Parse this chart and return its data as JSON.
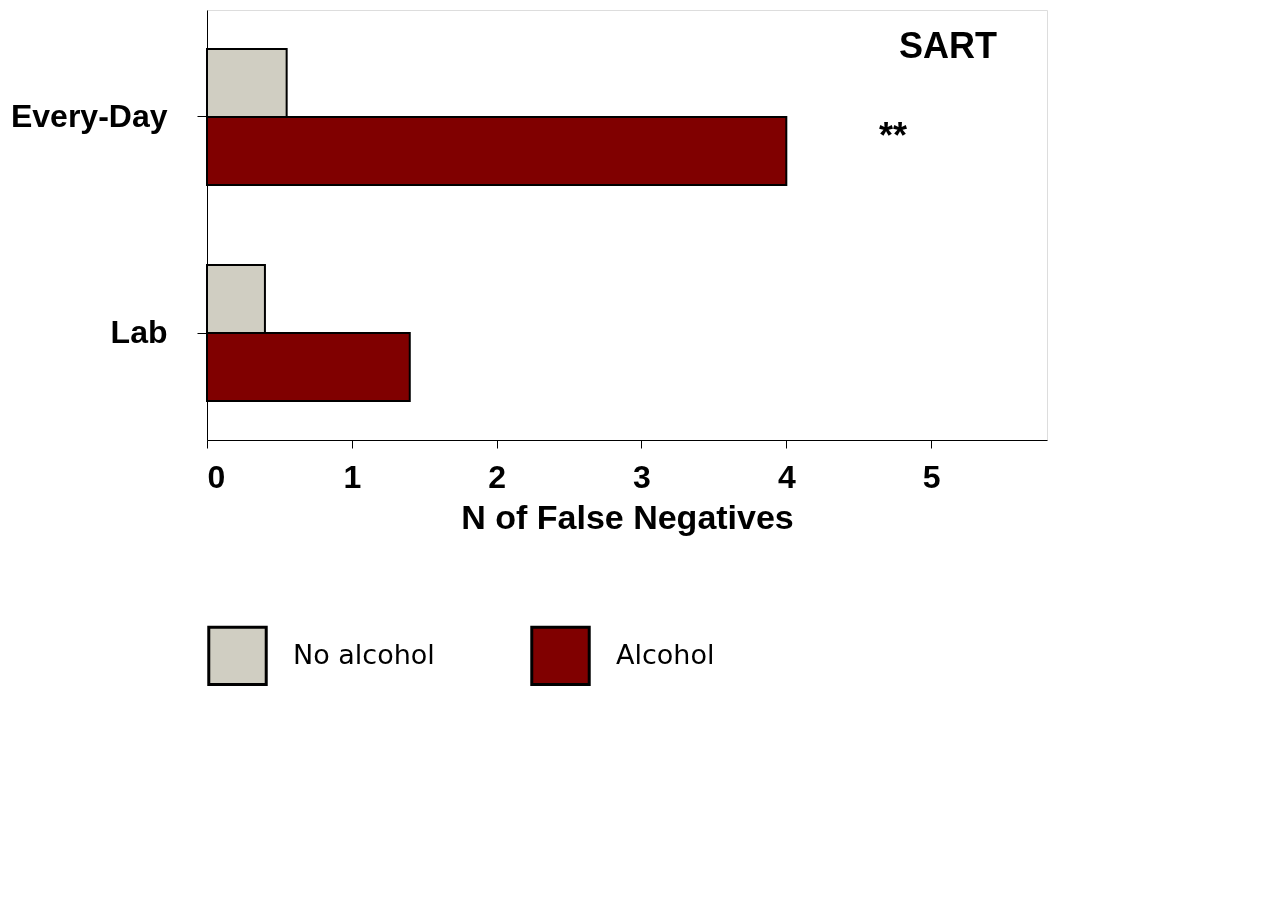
{
  "chart_data": {
    "type": "bar",
    "orientation": "horizontal",
    "xlabel": "N of False Negatives",
    "categories": [
      "Every-Day",
      "Lab"
    ],
    "series": [
      {
        "name": "No alcohol",
        "color": "#d0cec2",
        "values": [
          0.55,
          0.4
        ]
      },
      {
        "name": "Alcohol",
        "color": "#800000",
        "values": [
          4.0,
          1.4
        ]
      }
    ],
    "xlim": [
      0,
      5.8
    ],
    "xticks": [
      0,
      1,
      2,
      3,
      4,
      5
    ],
    "grid": false,
    "legend": "bottom",
    "annotations": [
      "SART",
      "**"
    ]
  }
}
